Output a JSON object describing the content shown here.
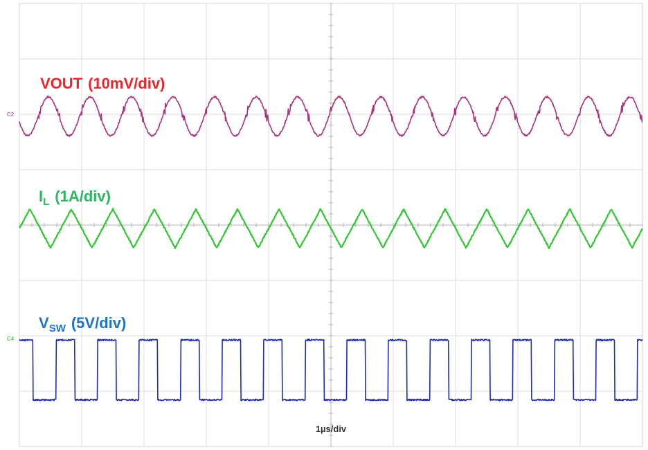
{
  "chart_data": {
    "type": "line",
    "title": "",
    "time_scale_label": "1µs/div",
    "grid": true,
    "divisions": {
      "horizontal": 10,
      "vertical": 8
    },
    "x_unit": "div",
    "xlim": [
      0,
      10
    ],
    "cycles_shown": 15,
    "series": [
      {
        "name": "VOUT",
        "label_main": "VOUT",
        "label_sub": "",
        "label_scale": "(10mV/div)",
        "scale": "10mV/div",
        "waveform": "sinusoidal ripple",
        "color": "#a8347c",
        "label_color": "#e8262b",
        "channel_marker": "C2",
        "amplitude_div": 0.35
      },
      {
        "name": "IL",
        "label_main": "I",
        "label_sub": "L",
        "label_scale": "(1A/div)",
        "scale": "1A/div",
        "waveform": "triangle",
        "color": "#37c337",
        "label_color": "#2db561",
        "channel_marker": "",
        "amplitude_div": 0.35
      },
      {
        "name": "VSW",
        "label_main": "V",
        "label_sub": "SW",
        "label_scale": "(5V/div)",
        "scale": "5V/div",
        "waveform": "square",
        "color": "#1f2ea8",
        "label_color": "#1f74c4",
        "channel_marker": "C4",
        "amplitude_div": 1.0,
        "duty_cycle": 0.45
      }
    ]
  }
}
